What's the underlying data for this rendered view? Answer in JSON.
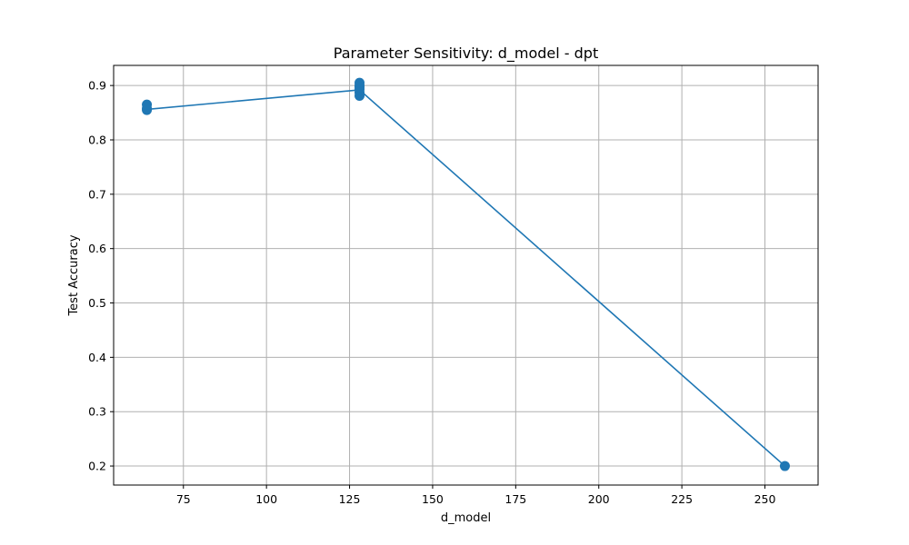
{
  "chart_data": {
    "type": "line",
    "title": "Parameter Sensitivity: d_model - dpt",
    "xlabel": "d_model",
    "ylabel": "Test Accuracy",
    "xlim": [
      54,
      266
    ],
    "ylim": [
      0.165,
      0.937
    ],
    "xticks": [
      75,
      100,
      125,
      150,
      175,
      200,
      225,
      250
    ],
    "yticks": [
      0.2,
      0.3,
      0.4,
      0.5,
      0.6,
      0.7,
      0.8,
      0.9
    ],
    "grid": true,
    "line": {
      "x": [
        64,
        128,
        256
      ],
      "y": [
        0.856,
        0.892,
        0.2
      ]
    },
    "points": {
      "x": [
        64,
        64,
        64,
        128,
        128,
        128,
        128,
        128,
        128,
        256
      ],
      "y": [
        0.855,
        0.858,
        0.865,
        0.881,
        0.887,
        0.893,
        0.897,
        0.9,
        0.905,
        0.2
      ]
    },
    "colors": {
      "series": "#1f77b4",
      "grid": "#b0b0b0",
      "axes": "#000000"
    }
  }
}
